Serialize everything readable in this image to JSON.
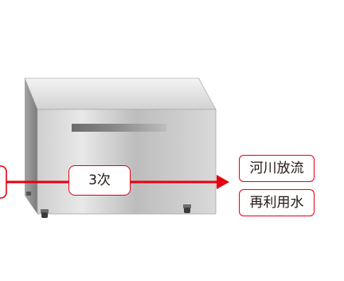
{
  "diagram": {
    "stage_label": "3次",
    "outputs": [
      {
        "label": "河川放流"
      },
      {
        "label": "再利用水"
      }
    ]
  },
  "colors": {
    "accent": "#e60012",
    "text": "#231815",
    "steel_light": "#d8d8d8",
    "steel_dark": "#8f8f8f",
    "caster": "#3a3a3a"
  },
  "icons": {
    "unit": "stainless-tank-unit-icon",
    "arrow": "arrow-right-icon"
  }
}
